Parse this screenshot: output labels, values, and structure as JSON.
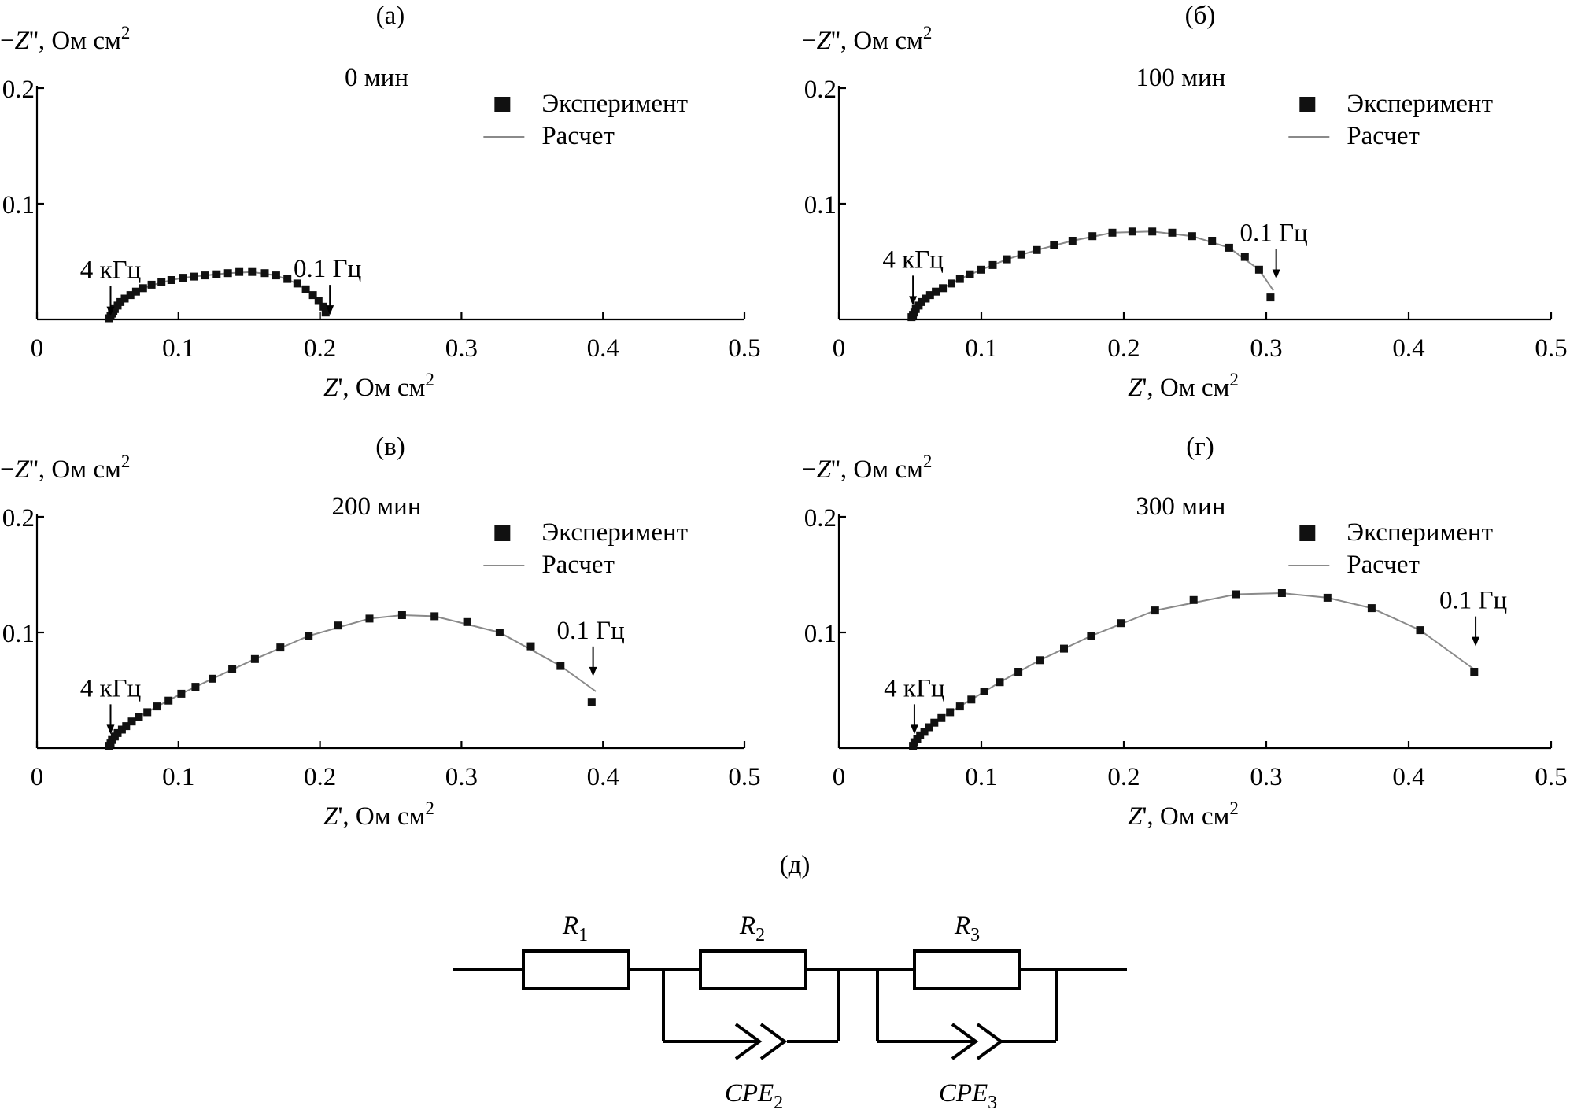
{
  "chart_data": [
    {
      "type": "scatter",
      "panel_label": "(а)",
      "title": "0 мин",
      "xlabel": "Z', Ом см²",
      "ylabel": "−Z'', Ом см²",
      "xlim": [
        0,
        0.5
      ],
      "ylim": [
        0,
        0.2
      ],
      "xticks": [
        "0",
        "0.1",
        "0.2",
        "0.3",
        "0.4",
        "0.5"
      ],
      "yticks": [
        "0.1",
        "0.2"
      ],
      "legend": {
        "position": "top-right",
        "entries": [
          "Эксперимент",
          "Расчет"
        ]
      },
      "annotations": [
        {
          "text": "4 кГц",
          "x": 0.052,
          "y": 0.003
        },
        {
          "text": "0.1 Гц",
          "x": 0.207,
          "y": 0.004
        }
      ],
      "series": [
        {
          "name": "Эксперимент",
          "mode": "markers",
          "x": [
            0.051,
            0.052,
            0.053,
            0.054,
            0.055,
            0.057,
            0.059,
            0.062,
            0.066,
            0.07,
            0.075,
            0.081,
            0.088,
            0.095,
            0.103,
            0.111,
            0.119,
            0.127,
            0.135,
            0.143,
            0.152,
            0.161,
            0.169,
            0.177,
            0.184,
            0.19,
            0.195,
            0.199,
            0.202,
            0.204
          ],
          "y": [
            0.001,
            0.003,
            0.005,
            0.007,
            0.009,
            0.012,
            0.015,
            0.018,
            0.021,
            0.024,
            0.027,
            0.03,
            0.032,
            0.034,
            0.036,
            0.037,
            0.038,
            0.039,
            0.04,
            0.041,
            0.041,
            0.04,
            0.038,
            0.035,
            0.031,
            0.026,
            0.021,
            0.016,
            0.011,
            0.006
          ]
        },
        {
          "name": "Расчет",
          "mode": "line",
          "x": [
            0.051,
            0.054,
            0.059,
            0.066,
            0.075,
            0.088,
            0.103,
            0.119,
            0.135,
            0.152,
            0.169,
            0.184,
            0.195,
            0.202,
            0.205
          ],
          "y": [
            0.001,
            0.007,
            0.015,
            0.021,
            0.027,
            0.032,
            0.036,
            0.038,
            0.04,
            0.041,
            0.038,
            0.031,
            0.021,
            0.011,
            0.003
          ]
        }
      ]
    },
    {
      "type": "scatter",
      "panel_label": "(б)",
      "title": "100 мин",
      "xlabel": "Z', Ом см²",
      "ylabel": "−Z'', Ом см²",
      "xlim": [
        0,
        0.5
      ],
      "ylim": [
        0,
        0.2
      ],
      "xticks": [
        "0",
        "0.1",
        "0.2",
        "0.3",
        "0.4",
        "0.5"
      ],
      "yticks": [
        "0.1",
        "0.2"
      ],
      "legend": {
        "position": "top-right",
        "entries": [
          "Эксперимент",
          "Расчет"
        ]
      },
      "annotations": [
        {
          "text": "4 кГц",
          "x": 0.052,
          "y": 0.012
        },
        {
          "text": "0.1 Гц",
          "x": 0.307,
          "y": 0.035
        }
      ],
      "series": [
        {
          "name": "Эксперимент",
          "mode": "markers",
          "x": [
            0.051,
            0.052,
            0.053,
            0.054,
            0.056,
            0.058,
            0.061,
            0.064,
            0.068,
            0.073,
            0.079,
            0.085,
            0.092,
            0.1,
            0.108,
            0.118,
            0.128,
            0.139,
            0.151,
            0.164,
            0.178,
            0.192,
            0.206,
            0.22,
            0.234,
            0.248,
            0.262,
            0.274,
            0.285,
            0.295,
            0.303
          ],
          "y": [
            0.002,
            0.004,
            0.006,
            0.009,
            0.012,
            0.015,
            0.018,
            0.021,
            0.024,
            0.027,
            0.031,
            0.035,
            0.039,
            0.043,
            0.047,
            0.052,
            0.056,
            0.06,
            0.064,
            0.068,
            0.072,
            0.075,
            0.076,
            0.076,
            0.075,
            0.072,
            0.068,
            0.062,
            0.054,
            0.043,
            0.019
          ]
        },
        {
          "name": "Расчет",
          "mode": "line",
          "x": [
            0.051,
            0.056,
            0.064,
            0.073,
            0.085,
            0.1,
            0.118,
            0.139,
            0.164,
            0.192,
            0.22,
            0.248,
            0.274,
            0.295,
            0.305
          ],
          "y": [
            0.002,
            0.012,
            0.021,
            0.027,
            0.035,
            0.043,
            0.052,
            0.06,
            0.068,
            0.075,
            0.076,
            0.072,
            0.062,
            0.043,
            0.025
          ]
        }
      ]
    },
    {
      "type": "scatter",
      "panel_label": "(в)",
      "title": "200 мин",
      "xlabel": "Z', Ом см²",
      "ylabel": "−Z'', Ом см²",
      "xlim": [
        0,
        0.5
      ],
      "ylim": [
        0,
        0.2
      ],
      "xticks": [
        "0",
        "0.1",
        "0.2",
        "0.3",
        "0.4",
        "0.5"
      ],
      "yticks": [
        "0.1",
        "0.2"
      ],
      "legend": {
        "position": "top-right",
        "entries": [
          "Эксперимент",
          "Расчет"
        ]
      },
      "annotations": [
        {
          "text": "4 кГц",
          "x": 0.052,
          "y": 0.012
        },
        {
          "text": "0.1 Гц",
          "x": 0.393,
          "y": 0.062
        }
      ],
      "series": [
        {
          "name": "Эксперимент",
          "mode": "markers",
          "x": [
            0.051,
            0.052,
            0.053,
            0.055,
            0.057,
            0.06,
            0.063,
            0.067,
            0.072,
            0.078,
            0.085,
            0.093,
            0.102,
            0.112,
            0.124,
            0.138,
            0.154,
            0.172,
            0.192,
            0.213,
            0.235,
            0.258,
            0.281,
            0.304,
            0.327,
            0.349,
            0.37,
            0.392
          ],
          "y": [
            0.002,
            0.004,
            0.007,
            0.01,
            0.013,
            0.016,
            0.019,
            0.023,
            0.027,
            0.031,
            0.036,
            0.041,
            0.047,
            0.053,
            0.06,
            0.068,
            0.077,
            0.087,
            0.097,
            0.106,
            0.112,
            0.115,
            0.114,
            0.109,
            0.1,
            0.088,
            0.071,
            0.04
          ]
        },
        {
          "name": "Расчет",
          "mode": "line",
          "x": [
            0.051,
            0.055,
            0.063,
            0.072,
            0.085,
            0.102,
            0.124,
            0.154,
            0.192,
            0.235,
            0.258,
            0.281,
            0.327,
            0.37,
            0.395
          ],
          "y": [
            0.002,
            0.01,
            0.019,
            0.027,
            0.036,
            0.047,
            0.06,
            0.077,
            0.097,
            0.112,
            0.115,
            0.114,
            0.1,
            0.071,
            0.049
          ]
        }
      ]
    },
    {
      "type": "scatter",
      "panel_label": "(г)",
      "title": "300 мин",
      "xlabel": "Z', Ом см²",
      "ylabel": "−Z'', Ом см²",
      "xlim": [
        0,
        0.5
      ],
      "ylim": [
        0,
        0.2
      ],
      "xticks": [
        "0",
        "0.1",
        "0.2",
        "0.3",
        "0.4",
        "0.5"
      ],
      "yticks": [
        "0.1",
        "0.2"
      ],
      "legend": {
        "position": "top-right",
        "entries": [
          "Эксперимент",
          "Расчет"
        ]
      },
      "annotations": [
        {
          "text": "4 кГц",
          "x": 0.053,
          "y": 0.012
        },
        {
          "text": "0.1 Гц",
          "x": 0.447,
          "y": 0.088
        }
      ],
      "series": [
        {
          "name": "Эксперимент",
          "mode": "markers",
          "x": [
            0.052,
            0.053,
            0.055,
            0.057,
            0.06,
            0.063,
            0.067,
            0.072,
            0.078,
            0.085,
            0.093,
            0.102,
            0.113,
            0.126,
            0.141,
            0.158,
            0.177,
            0.198,
            0.222,
            0.249,
            0.279,
            0.311,
            0.343,
            0.374,
            0.408,
            0.446
          ],
          "y": [
            0.002,
            0.005,
            0.008,
            0.011,
            0.014,
            0.018,
            0.022,
            0.026,
            0.031,
            0.036,
            0.042,
            0.049,
            0.057,
            0.066,
            0.076,
            0.086,
            0.097,
            0.108,
            0.119,
            0.128,
            0.133,
            0.134,
            0.13,
            0.121,
            0.102,
            0.066
          ]
        },
        {
          "name": "Расчет",
          "mode": "line",
          "x": [
            0.052,
            0.057,
            0.067,
            0.078,
            0.093,
            0.113,
            0.141,
            0.177,
            0.222,
            0.279,
            0.311,
            0.343,
            0.374,
            0.408,
            0.446
          ],
          "y": [
            0.002,
            0.011,
            0.022,
            0.031,
            0.042,
            0.057,
            0.076,
            0.097,
            0.119,
            0.133,
            0.134,
            0.13,
            0.121,
            0.102,
            0.068
          ]
        }
      ]
    }
  ],
  "circuit": {
    "panel_label": "(д)",
    "elements": [
      {
        "main": "R",
        "sub": "1"
      },
      {
        "main": "R",
        "sub": "2"
      },
      {
        "main": "R",
        "sub": "3"
      },
      {
        "main": "CPE",
        "sub": "2"
      },
      {
        "main": "CPE",
        "sub": "3"
      }
    ]
  }
}
